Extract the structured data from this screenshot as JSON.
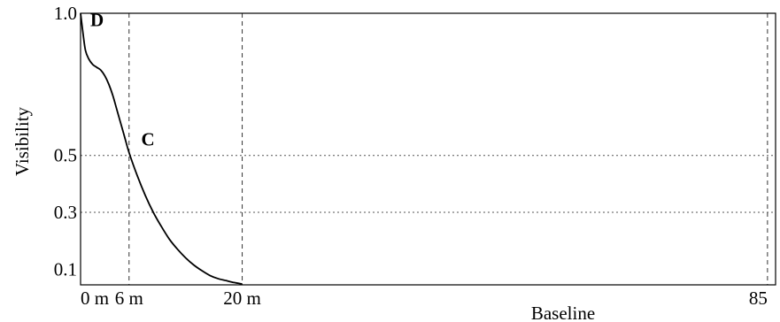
{
  "chart_data": {
    "type": "line",
    "ylabel": "Visibility",
    "xlabel": "Baseline",
    "x_ticks": [
      {
        "value": 0,
        "label": "0 m"
      },
      {
        "value": 6,
        "label": "6 m"
      },
      {
        "value": 20,
        "label": "20 m"
      },
      {
        "value": 85,
        "label": "85"
      }
    ],
    "y_ticks": [
      {
        "value": 1.0,
        "label": "1.0"
      },
      {
        "value": 0.5,
        "label": "0.5"
      },
      {
        "value": 0.3,
        "label": "0.3"
      },
      {
        "value": 0.1,
        "label": "0.1"
      }
    ],
    "xlim": [
      0,
      86
    ],
    "ylim": [
      0.045,
      1.0
    ],
    "vertical_dashed_lines_at_x": [
      6,
      20,
      85
    ],
    "horizontal_dotted_lines_at_y": [
      0.5,
      0.3
    ],
    "series": [
      {
        "x": [
          0,
          0.3,
          0.6,
          1.0,
          1.5,
          2.0,
          2.5,
          3.0,
          3.5,
          4.0,
          4.5,
          5.0,
          5.5,
          6.0,
          7.0,
          8.0,
          9.0,
          10.0,
          11.0,
          12.0,
          13.0,
          14.0,
          15.0,
          16.0,
          17.0,
          18.0,
          19.0,
          20.0
        ],
        "y": [
          1.0,
          0.93,
          0.87,
          0.84,
          0.82,
          0.81,
          0.8,
          0.78,
          0.75,
          0.71,
          0.66,
          0.61,
          0.56,
          0.51,
          0.43,
          0.36,
          0.3,
          0.25,
          0.205,
          0.17,
          0.14,
          0.115,
          0.095,
          0.078,
          0.067,
          0.06,
          0.053,
          0.048
        ]
      }
    ],
    "annotations": [
      {
        "text": "D",
        "x": 1.2,
        "y": 0.955
      },
      {
        "text": "C",
        "x": 7.5,
        "y": 0.535
      }
    ]
  }
}
